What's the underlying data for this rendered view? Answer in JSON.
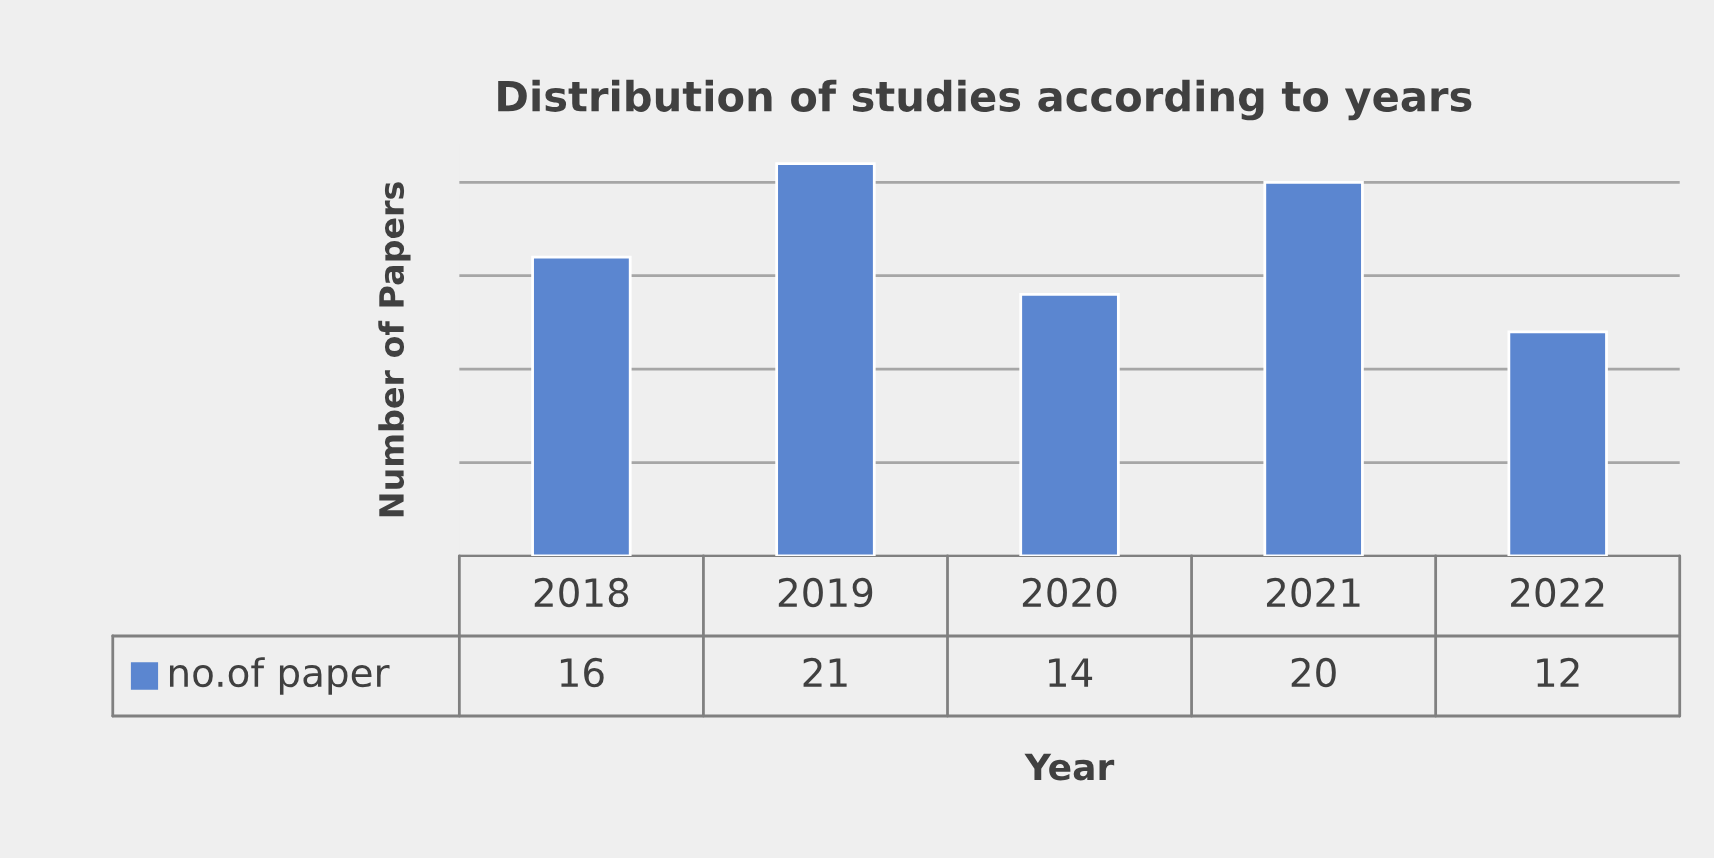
{
  "chart_data": {
    "type": "bar",
    "title": "Distribution of studies according to years",
    "xlabel": "Year",
    "ylabel": "Number of Papers",
    "categories": [
      "2018",
      "2019",
      "2020",
      "2021",
      "2022"
    ],
    "series": [
      {
        "name": "no.of paper",
        "color": "#5b86d0",
        "values": [
          16,
          21,
          14,
          20,
          12
        ]
      }
    ],
    "yticks": [
      {
        "value": 0,
        "label": null
      },
      {
        "value": 5,
        "label": null
      },
      {
        "value": 10,
        "label": null
      },
      {
        "value": 15,
        "label": null
      },
      {
        "value": 20,
        "label": null
      }
    ],
    "grid": "y",
    "data_labels": true,
    "legend": "bottom"
  }
}
